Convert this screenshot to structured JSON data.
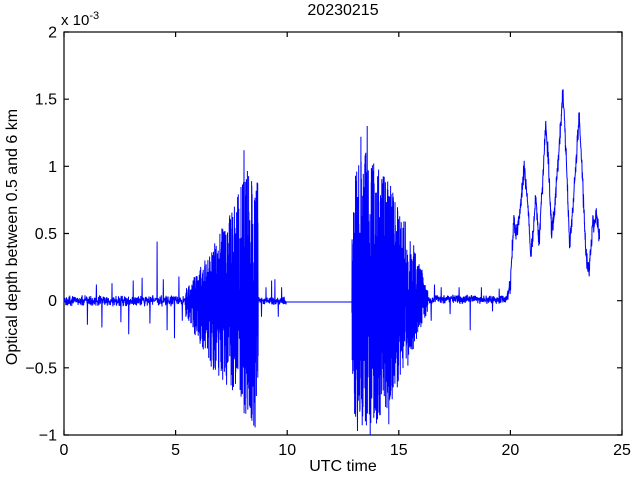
{
  "figure": {
    "background": "#ffffff"
  },
  "chart_data": {
    "type": "line",
    "title": "20230215",
    "xlabel": "UTC time",
    "ylabel": "Optical depth between 0.5 and 6 km",
    "y_scale_prefix": "x 10",
    "y_scale_exponent": "-3",
    "y_unit_scale": 0.001,
    "x_lim": [
      0,
      25
    ],
    "y_lim": [
      -1,
      2
    ],
    "grid": false,
    "legend": null,
    "line_color": "#0000ff",
    "axis_color": "#000000",
    "x_ticks": [
      {
        "value": 0,
        "label": "0"
      },
      {
        "value": 5,
        "label": "5"
      },
      {
        "value": 10,
        "label": "10"
      },
      {
        "value": 15,
        "label": "15"
      },
      {
        "value": 20,
        "label": "20"
      },
      {
        "value": 25,
        "label": "25"
      }
    ],
    "y_ticks": [
      {
        "value": 2,
        "label": "2"
      },
      {
        "value": 1.5,
        "label": "1.5"
      },
      {
        "value": 1,
        "label": "1"
      },
      {
        "value": 0.5,
        "label": "0.5"
      },
      {
        "value": 0,
        "label": "0"
      },
      {
        "value": -0.5,
        "label": "−0.5"
      },
      {
        "value": -1,
        "label": "−1"
      }
    ],
    "series_name": "optical-depth-signal",
    "segments": [
      {
        "kind": "noise",
        "x0": 0,
        "x1": 5.45,
        "amp": 0.045,
        "spikes": [
          [
            1.05,
            -0.18
          ],
          [
            1.45,
            0.12
          ],
          [
            1.7,
            -0.2
          ],
          [
            2.15,
            0.13
          ],
          [
            2.55,
            -0.16
          ],
          [
            2.9,
            -0.25
          ],
          [
            3.1,
            0.15
          ],
          [
            3.5,
            0.17
          ],
          [
            3.85,
            -0.17
          ],
          [
            4.17,
            0.44
          ],
          [
            4.45,
            0.16
          ],
          [
            4.62,
            -0.22
          ],
          [
            4.95,
            -0.28
          ],
          [
            5.15,
            0.18
          ],
          [
            5.3,
            -0.15
          ]
        ]
      },
      {
        "kind": "burst",
        "x0": 5.45,
        "x1": 8.7,
        "env_pos": [
          [
            5.45,
            0.09
          ],
          [
            6.0,
            0.22
          ],
          [
            6.5,
            0.38
          ],
          [
            7.0,
            0.52
          ],
          [
            7.5,
            0.68
          ],
          [
            8.0,
            0.88
          ],
          [
            8.35,
            1.02
          ],
          [
            8.6,
            1.0
          ],
          [
            8.7,
            0.85
          ]
        ],
        "env_neg": [
          [
            5.45,
            0.12
          ],
          [
            6.0,
            0.3
          ],
          [
            6.5,
            0.48
          ],
          [
            7.0,
            0.58
          ],
          [
            7.5,
            0.68
          ],
          [
            8.0,
            0.82
          ],
          [
            8.35,
            0.92
          ],
          [
            8.6,
            0.95
          ],
          [
            8.7,
            0.6
          ]
        ],
        "spikes": [
          [
            8.06,
            1.12
          ],
          [
            8.65,
            0.88
          ],
          [
            8.5,
            -0.93
          ],
          [
            6.72,
            -0.5
          ]
        ]
      },
      {
        "kind": "noise",
        "x0": 8.7,
        "x1": 9.95,
        "amp": 0.035,
        "spikes": [
          [
            8.85,
            -0.12
          ],
          [
            9.05,
            0.1
          ],
          [
            9.3,
            0.15
          ],
          [
            9.45,
            0.16
          ],
          [
            9.6,
            -0.12
          ],
          [
            9.75,
            0.1
          ]
        ]
      },
      {
        "kind": "flat",
        "x0": 9.95,
        "x1": 12.9,
        "value": -0.01
      },
      {
        "kind": "burst",
        "x0": 12.9,
        "x1": 16.3,
        "env_pos": [
          [
            12.9,
            0.6
          ],
          [
            13.05,
            1.0
          ],
          [
            13.35,
            1.08
          ],
          [
            13.65,
            1.12
          ],
          [
            13.95,
            1.0
          ],
          [
            14.35,
            0.95
          ],
          [
            14.75,
            0.82
          ],
          [
            15.15,
            0.65
          ],
          [
            15.55,
            0.48
          ],
          [
            15.95,
            0.28
          ],
          [
            16.3,
            0.1
          ]
        ],
        "env_neg": [
          [
            12.9,
            0.65
          ],
          [
            13.05,
            0.9
          ],
          [
            13.35,
            0.97
          ],
          [
            13.65,
            0.92
          ],
          [
            13.95,
            0.95
          ],
          [
            14.35,
            0.85
          ],
          [
            14.75,
            0.75
          ],
          [
            15.15,
            0.6
          ],
          [
            15.55,
            0.42
          ],
          [
            15.95,
            0.22
          ],
          [
            16.3,
            0.08
          ]
        ],
        "spikes": [
          [
            13.3,
            1.22
          ],
          [
            13.58,
            1.3
          ],
          [
            13.15,
            -0.97
          ],
          [
            13.72,
            -1.0
          ],
          [
            14.55,
            -0.92
          ]
        ]
      },
      {
        "kind": "noise",
        "x0": 16.3,
        "x1": 19.85,
        "amp": 0.04,
        "bias": 0.01,
        "spikes": [
          [
            16.45,
            -0.15
          ],
          [
            16.6,
            0.12
          ],
          [
            16.9,
            0.1
          ],
          [
            17.3,
            -0.1
          ],
          [
            17.7,
            0.1
          ],
          [
            18.2,
            -0.22
          ],
          [
            18.7,
            0.1
          ],
          [
            19.2,
            -0.08
          ],
          [
            19.5,
            0.09
          ]
        ]
      },
      {
        "kind": "band",
        "x0": 19.85,
        "x1": 24.0,
        "band": 0.09,
        "path": [
          [
            19.85,
            0.03
          ],
          [
            20.0,
            0.12
          ],
          [
            20.15,
            0.6
          ],
          [
            20.25,
            0.5
          ],
          [
            20.45,
            0.7
          ],
          [
            20.62,
            1.0
          ],
          [
            20.75,
            0.8
          ],
          [
            20.92,
            0.32
          ],
          [
            21.05,
            0.6
          ],
          [
            21.15,
            0.78
          ],
          [
            21.28,
            0.42
          ],
          [
            21.45,
            0.9
          ],
          [
            21.58,
            1.32
          ],
          [
            21.7,
            1.05
          ],
          [
            21.85,
            0.5
          ],
          [
            22.0,
            0.72
          ],
          [
            22.15,
            1.05
          ],
          [
            22.35,
            1.55
          ],
          [
            22.5,
            1.08
          ],
          [
            22.65,
            0.4
          ],
          [
            22.8,
            0.7
          ],
          [
            22.95,
            1.05
          ],
          [
            23.08,
            1.38
          ],
          [
            23.22,
            0.95
          ],
          [
            23.38,
            0.35
          ],
          [
            23.52,
            0.22
          ],
          [
            23.68,
            0.55
          ],
          [
            23.85,
            0.62
          ],
          [
            24.0,
            0.45
          ]
        ]
      }
    ]
  }
}
